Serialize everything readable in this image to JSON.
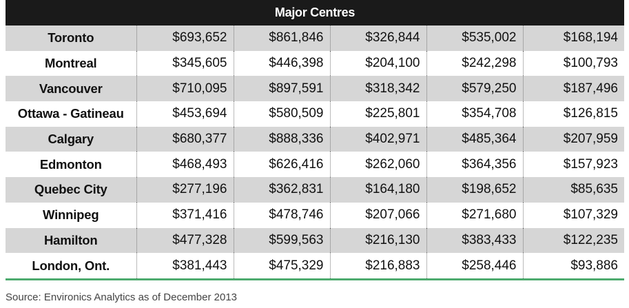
{
  "header": {
    "title": "Major Centres"
  },
  "rows": [
    {
      "city": "Toronto",
      "values": [
        "$693,652",
        "$861,846",
        "$326,844",
        "$535,002",
        "$168,194"
      ]
    },
    {
      "city": "Montreal",
      "values": [
        "$345,605",
        "$446,398",
        "$204,100",
        "$242,298",
        "$100,793"
      ]
    },
    {
      "city": "Vancouver",
      "values": [
        "$710,095",
        "$897,591",
        "$318,342",
        "$579,250",
        "$187,496"
      ]
    },
    {
      "city": "Ottawa - Gatineau",
      "values": [
        "$453,694",
        "$580,509",
        "$225,801",
        "$354,708",
        "$126,815"
      ]
    },
    {
      "city": "Calgary",
      "values": [
        "$680,377",
        "$888,336",
        "$402,971",
        "$485,364",
        "$207,959"
      ]
    },
    {
      "city": "Edmonton",
      "values": [
        "$468,493",
        "$626,416",
        "$262,060",
        "$364,356",
        "$157,923"
      ]
    },
    {
      "city": "Quebec City",
      "values": [
        "$277,196",
        "$362,831",
        "$164,180",
        "$198,652",
        "$85,635"
      ]
    },
    {
      "city": "Winnipeg",
      "values": [
        "$371,416",
        "$478,746",
        "$207,066",
        "$271,680",
        "$107,329"
      ]
    },
    {
      "city": "Hamilton",
      "values": [
        "$477,328",
        "$599,563",
        "$216,130",
        "$383,433",
        "$122,235"
      ]
    },
    {
      "city": "London, Ont.",
      "values": [
        "$381,443",
        "$475,329",
        "$216,883",
        "$258,446",
        "$93,886"
      ]
    }
  ],
  "footer": {
    "source": "Source: Environics Analytics as of December 2013"
  },
  "colors": {
    "header_bg": "#1a1a1a",
    "row_shade": "#d6d6d6",
    "rule": "#4daa6e"
  }
}
